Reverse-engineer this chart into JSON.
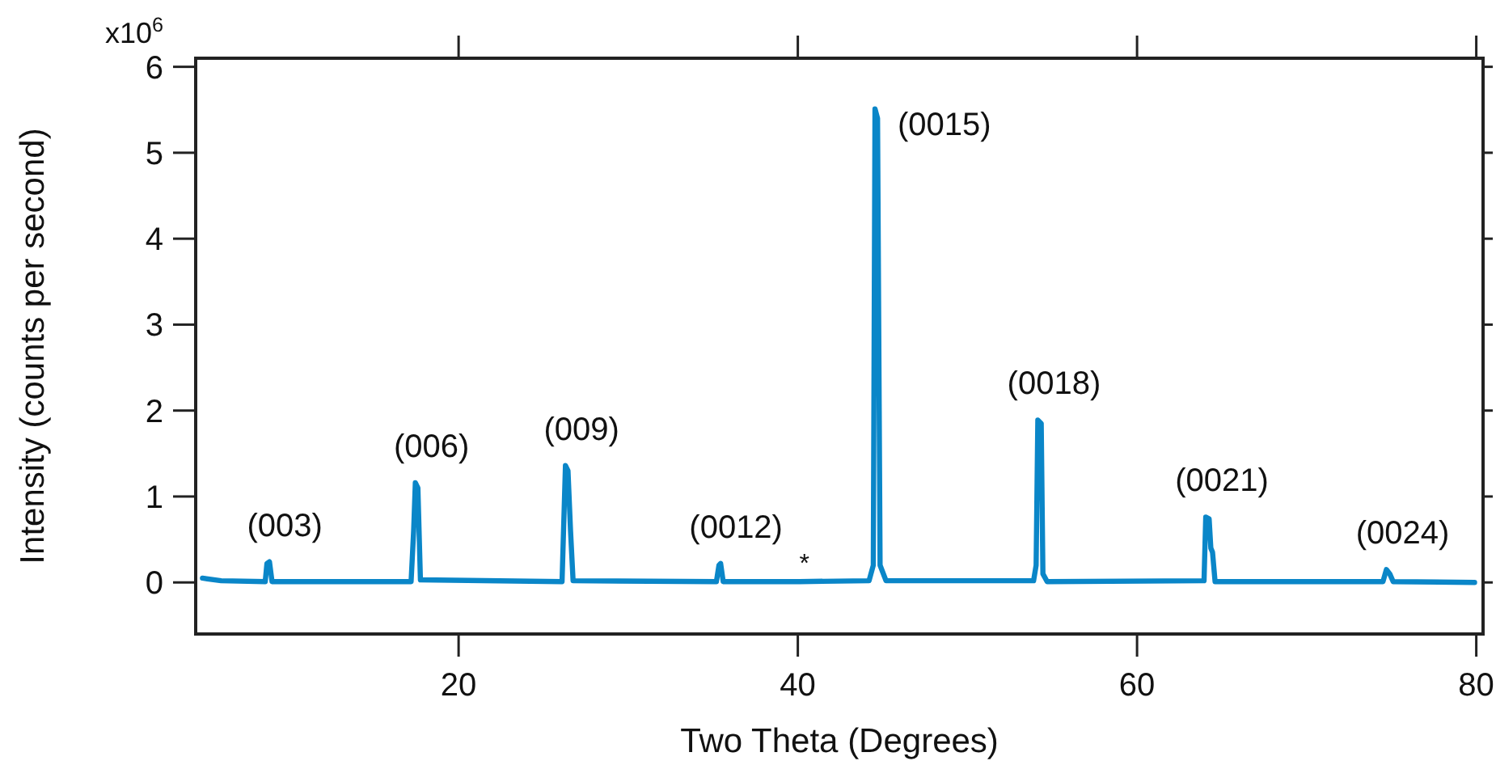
{
  "chart_data": {
    "type": "line",
    "xlabel": "Two Theta (Degrees)",
    "ylabel": "Intensity (counts per second)",
    "xlim": [
      4.5,
      80.4
    ],
    "ylim": [
      -0.6,
      6.1
    ],
    "xticks": [
      20,
      40,
      60,
      80
    ],
    "yticks": [
      0,
      1,
      2,
      3,
      4,
      5,
      6
    ],
    "grid": false,
    "marker": "none",
    "line_style": "solid",
    "series": [
      {
        "color": "#0a86c8",
        "x": [
          4.9,
          6,
          8.6,
          8.7,
          8.85,
          9.0,
          17.2,
          17.35,
          17.45,
          17.6,
          17.75,
          26.1,
          26.3,
          26.45,
          26.6,
          26.75,
          35.2,
          35.35,
          35.45,
          35.6,
          40.1,
          44.2,
          44.45,
          44.55,
          44.7,
          44.85,
          45.2,
          53.9,
          54.05,
          54.15,
          54.35,
          54.45,
          54.7,
          63.95,
          64.05,
          64.25,
          64.35,
          64.45,
          64.6,
          74.5,
          74.7,
          74.9,
          75.1,
          79.9
        ],
        "values": [
          0.05,
          0.02,
          0.01,
          0.22,
          0.24,
          0.01,
          0.01,
          0.6,
          1.16,
          1.1,
          0.03,
          0.01,
          1.36,
          1.3,
          0.6,
          0.02,
          0.01,
          0.2,
          0.22,
          0.01,
          0.01,
          0.02,
          0.2,
          5.51,
          5.4,
          0.2,
          0.02,
          0.02,
          0.2,
          1.89,
          1.85,
          0.1,
          0.01,
          0.02,
          0.76,
          0.74,
          0.4,
          0.35,
          0.01,
          0.01,
          0.15,
          0.1,
          0.01,
          0.0
        ]
      }
    ],
    "annotations": [
      "x10$^{6}$",
      {
        "text": "(003)",
        "x": 8.8,
        "y": 0.24
      },
      {
        "text": "(006)",
        "x": 17.45,
        "y": 1.16
      },
      {
        "text": "(009)",
        "x": 26.3,
        "y": 1.36
      },
      {
        "text": "(0012)",
        "x": 35.4,
        "y": 0.22
      },
      {
        "text": "*",
        "x": 40.1,
        "y": 0.01
      },
      {
        "text": "(0015)",
        "x": 44.55,
        "y": 5.51
      },
      {
        "text": "(0018)",
        "x": 54.15,
        "y": 1.89
      },
      {
        "text": "(0021)",
        "x": 64.05,
        "y": 0.76
      },
      {
        "text": "(0024)",
        "x": 74.7,
        "y": 0.15
      }
    ]
  }
}
